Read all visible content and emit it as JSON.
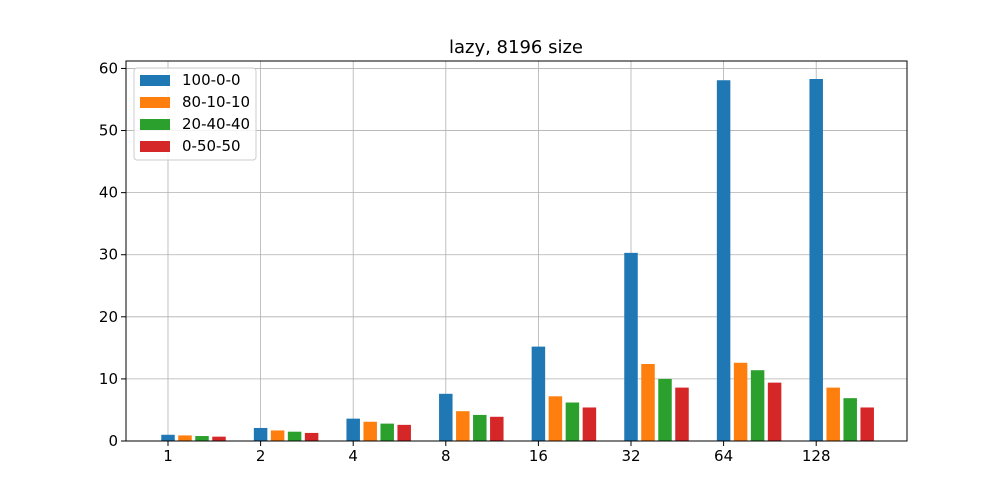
{
  "chart_data": {
    "type": "bar",
    "title": "lazy, 8196 size",
    "xlabel": "",
    "ylabel": "",
    "categories": [
      "1",
      "2",
      "4",
      "8",
      "16",
      "32",
      "64",
      "128"
    ],
    "series": [
      {
        "name": "100-0-0",
        "color": "#1f77b4",
        "values": [
          1.0,
          2.1,
          3.6,
          7.6,
          15.2,
          30.3,
          58.1,
          58.3
        ]
      },
      {
        "name": "80-10-10",
        "color": "#ff7f0e",
        "values": [
          0.9,
          1.7,
          3.1,
          4.8,
          7.2,
          12.4,
          12.6,
          8.6
        ]
      },
      {
        "name": "20-40-40",
        "color": "#2ca02c",
        "values": [
          0.8,
          1.5,
          2.8,
          4.2,
          6.2,
          10.0,
          11.4,
          6.9
        ]
      },
      {
        "name": "0-50-50",
        "color": "#d62728",
        "values": [
          0.7,
          1.3,
          2.6,
          3.9,
          5.4,
          8.6,
          9.4,
          5.4
        ]
      }
    ],
    "ylim": [
      0,
      61.2
    ],
    "yticks": [
      0,
      10,
      20,
      30,
      40,
      50,
      60
    ],
    "grid": true,
    "legend": "top-left"
  }
}
